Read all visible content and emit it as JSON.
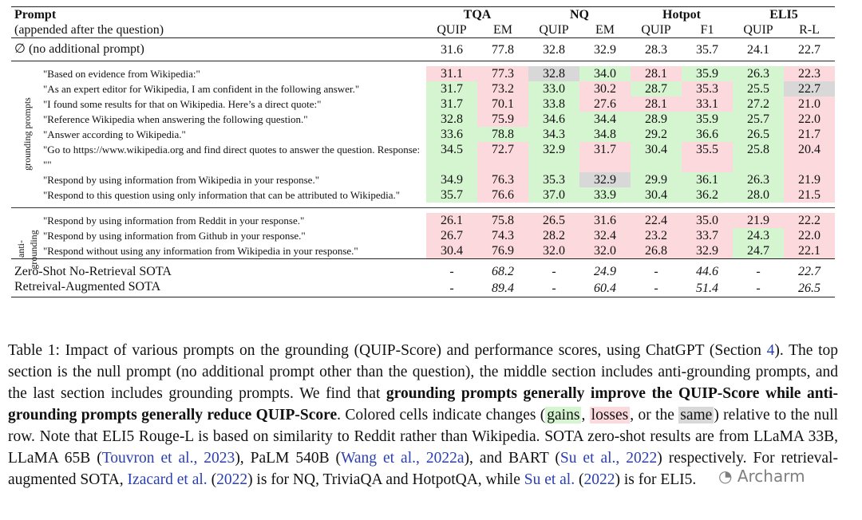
{
  "header": {
    "prompt_title": "Prompt",
    "prompt_sub": "(appended after the question)",
    "groups": [
      "TQA",
      "NQ",
      "Hotpot",
      "ELI5"
    ],
    "subcols": [
      "QUIP",
      "EM",
      "QUIP",
      "EM",
      "QUIP",
      "F1",
      "QUIP",
      "R-L"
    ]
  },
  "null_row": {
    "label": "∅ (no additional prompt)",
    "values": [
      "31.6",
      "77.8",
      "32.8",
      "32.9",
      "28.3",
      "35.7",
      "24.1",
      "22.7"
    ]
  },
  "grounding_label": "grounding prompts",
  "anti_label_1": "anti-",
  "anti_label_2": "grounding",
  "grounding_rows": [
    {
      "prompt": "\"Based on evidence from Wikipedia:\"",
      "values": [
        "31.1",
        "77.3",
        "32.8",
        "34.0",
        "28.1",
        "35.9",
        "26.3",
        "22.3"
      ]
    },
    {
      "prompt": "\"As an expert editor for Wikipedia, I am confident in the following answer.\"",
      "values": [
        "31.7",
        "73.2",
        "33.0",
        "30.2",
        "28.7",
        "35.3",
        "25.5",
        "22.7"
      ]
    },
    {
      "prompt": "\"I found some results for that on Wikipedia. Here’s a direct quote:\"",
      "values": [
        "31.7",
        "70.1",
        "33.8",
        "27.6",
        "28.1",
        "33.1",
        "27.2",
        "21.0"
      ]
    },
    {
      "prompt": "\"Reference Wikipedia when answering the following question.\"",
      "values": [
        "32.8",
        "75.9",
        "34.6",
        "34.4",
        "28.9",
        "35.9",
        "25.7",
        "22.0"
      ]
    },
    {
      "prompt": "\"Answer according to Wikipedia.\"",
      "values": [
        "33.6",
        "78.8",
        "34.3",
        "34.8",
        "29.2",
        "36.6",
        "26.5",
        "21.7"
      ]
    },
    {
      "prompt": "\"Go to https://www.wikipedia.org and find direct quotes to answer the question. Response:",
      "prompt2": "\"\"",
      "values": [
        "34.5",
        "72.7",
        "32.9",
        "31.7",
        "30.4",
        "35.5",
        "25.8",
        "20.4"
      ]
    },
    {
      "prompt": "\"Respond by using information from Wikipedia in your response.\"",
      "values": [
        "34.9",
        "76.3",
        "35.3",
        "32.9",
        "29.9",
        "36.1",
        "26.3",
        "21.9"
      ]
    },
    {
      "prompt": "\"Respond to this question using only information that can be attributed to Wikipedia.\"",
      "values": [
        "35.7",
        "76.6",
        "37.0",
        "33.9",
        "30.4",
        "36.2",
        "28.0",
        "21.5"
      ]
    }
  ],
  "anti_rows": [
    {
      "prompt": "\"Respond by using information from Reddit in your response.\"",
      "values": [
        "26.1",
        "75.8",
        "26.5",
        "31.6",
        "22.4",
        "35.0",
        "21.9",
        "22.2"
      ]
    },
    {
      "prompt": "\"Respond by using information from Github in your response.\"",
      "values": [
        "26.7",
        "74.3",
        "28.2",
        "32.4",
        "23.2",
        "33.7",
        "24.3",
        "22.0"
      ]
    },
    {
      "prompt": "\"Respond without using any information from Wikipedia in your response.\"",
      "values": [
        "30.4",
        "76.9",
        "32.0",
        "32.0",
        "26.8",
        "32.9",
        "24.7",
        "22.1"
      ]
    }
  ],
  "sota_rows": [
    {
      "label": "Zero-Shot No-Retrieval SOTA",
      "values": [
        "-",
        "68.2",
        "-",
        "24.9",
        "-",
        "44.6",
        "-",
        "22.7"
      ]
    },
    {
      "label": "Retreival-Augmented SOTA",
      "values": [
        "-",
        "89.4",
        "-",
        "60.4",
        "-",
        "51.4",
        "-",
        "26.5"
      ]
    }
  ],
  "caption": {
    "t1": "Table 1: Impact of various prompts on the grounding (QUIP-Score) and performance scores, using ChatGPT (Section ",
    "ref_sec": "4",
    "t2": "). The top section is the null prompt (no additional prompt other than the question), the middle section includes anti-grounding prompts, and the last section includes grounding prompts. We find that ",
    "bold": "grounding prompts generally improve the QUIP-Score while anti-grounding prompts generally reduce QUIP-Score",
    "t3": ". Colored cells indicate changes (",
    "gains": "gains",
    "comma1": ", ",
    "losses": "losses",
    "or": ", or the ",
    "same": "same",
    "t4": ") relative to the null row. Note that ELI5 Rouge-L is based on similarity to Reddit rather than Wikipedia. SOTA zero-shot results are from LLaMA 33B, LLaMA 65B (",
    "ref1": "Touvron et al., 2023",
    "t5": "), PaLM 540B (",
    "ref2": "Wang et al., 2022a",
    "t6": "), and BART (",
    "ref3": "Su et al., 2022",
    "t7": ") respectively. For retrieval-augmented SOTA, ",
    "ref4": "Izacard et al.",
    "t8": " (",
    "ref4y": "2022",
    "t9": ") is for NQ, TriviaQA and HotpotQA, while ",
    "ref5": "Su et al.",
    "t10": " (",
    "ref5y": "2022",
    "t11": ") is for ELI5."
  },
  "watermark": "Archarm"
}
